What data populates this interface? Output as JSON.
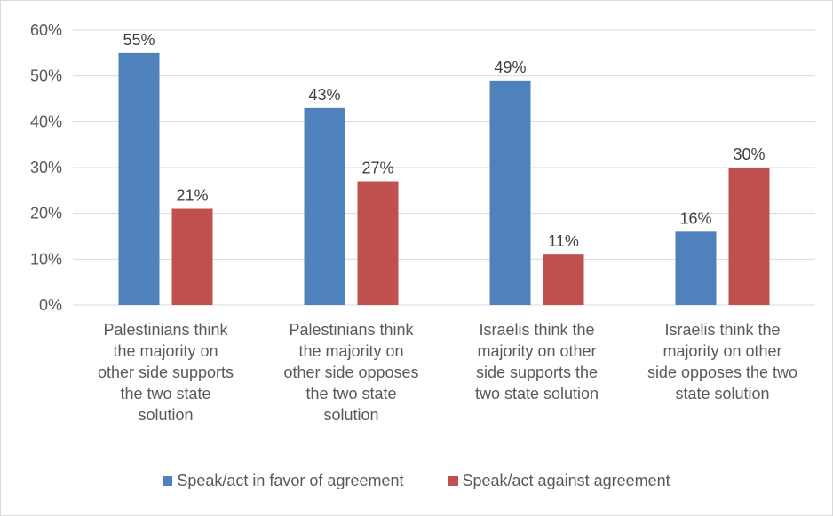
{
  "chart_data": {
    "type": "bar",
    "categories": [
      [
        "Palestinians think",
        "the majority on",
        "other side supports",
        "the two state",
        "solution"
      ],
      [
        "Palestinians think",
        "the majority on",
        "other side opposes",
        "the two state",
        "solution"
      ],
      [
        "Israelis think the",
        "majority on other",
        "side supports the",
        "two state solution"
      ],
      [
        "Israelis think the",
        "majority on other",
        "side opposes the two",
        "state solution"
      ]
    ],
    "series": [
      {
        "name": "Speak/act in favor of agreement",
        "values": [
          55,
          43,
          49,
          16
        ],
        "labels": [
          "55%",
          "43%",
          "49%",
          "16%"
        ],
        "color": "#4f81bd"
      },
      {
        "name": "Speak/act against agreement",
        "values": [
          21,
          27,
          11,
          30
        ],
        "labels": [
          "21%",
          "27%",
          "11%",
          "30%"
        ],
        "color": "#c0504d"
      }
    ],
    "ylim": [
      0,
      60
    ],
    "yticks": [
      0,
      10,
      20,
      30,
      40,
      50,
      60
    ],
    "ytick_labels": [
      "0%",
      "10%",
      "20%",
      "30%",
      "40%",
      "50%",
      "60%"
    ],
    "grid": true,
    "legend_position": "bottom"
  }
}
